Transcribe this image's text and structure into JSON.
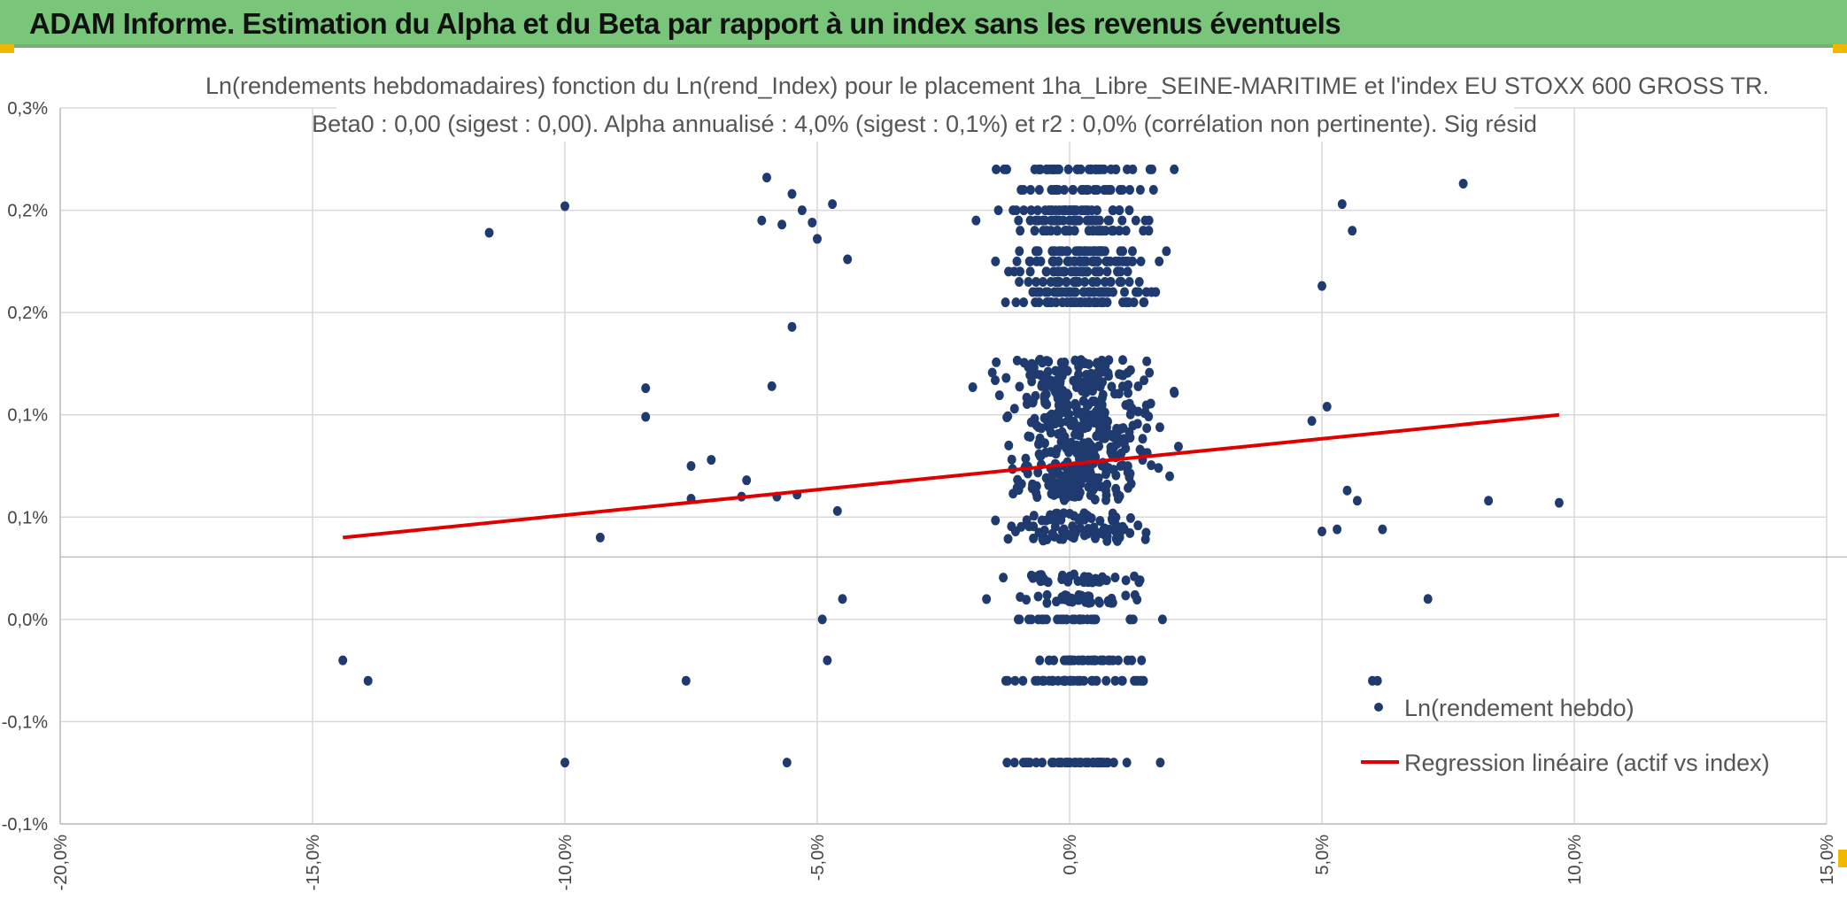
{
  "header": {
    "title": "ADAM Informe. Estimation du Alpha et du Beta par rapport à un index sans les revenus éventuels"
  },
  "colors": {
    "header_bg": "#79c67a",
    "point": "#1f3a6e",
    "regression": "#e00000",
    "grid": "#d9d9d9",
    "accent": "#f2b800"
  },
  "chart_data": {
    "type": "scatter",
    "title": "Ln(rendements hebdomadaires) fonction du Ln(rend_Index) pour le placement 1ha_Libre_SEINE-MARITIME et l'index EU STOXX 600 GROSS TR.",
    "subtitle": "Beta0 : 0,00 (sigest : 0,00). Alpha annualisé : 4,0% (sigest : 0,1%) et r2 : 0,0% (corrélation non pertinente). Sig résid",
    "xlabel": "",
    "ylabel": "",
    "xlim": [
      -0.2,
      0.15
    ],
    "ylim": [
      -0.001,
      0.0025
    ],
    "grid": true,
    "x_ticks": [
      -0.2,
      -0.15,
      -0.1,
      -0.05,
      0.0,
      0.05,
      0.1,
      0.15
    ],
    "x_tick_labels": [
      "-20,0%",
      "-15,0%",
      "-10,0%",
      "-5,0%",
      "0,0%",
      "5,0%",
      "10,0%",
      "15,0%"
    ],
    "y_ticks": [
      -0.001,
      -0.0005,
      0.0,
      0.0005,
      0.001,
      0.0015,
      0.002,
      0.0025
    ],
    "y_tick_labels": [
      "-0,1%",
      "-0,1%",
      "0,0%",
      "0,1%",
      "0,1%",
      "0,2%",
      "0,2%",
      "0,3%"
    ],
    "legend": {
      "position": "bottom-right",
      "points_label": "Ln(rendement hebdo)",
      "line_label": "Regression linéaire (actif vs index)"
    },
    "regression": {
      "x": [
        -0.144,
        0.097
      ],
      "y": [
        0.0004,
        0.001
      ]
    },
    "outliers": {
      "x": [
        -0.144,
        -0.139,
        -0.115,
        -0.1,
        -0.1,
        -0.093,
        -0.084,
        -0.084,
        -0.076,
        -0.075,
        -0.075,
        -0.071,
        -0.065,
        -0.064,
        -0.061,
        -0.06,
        -0.059,
        -0.058,
        -0.057,
        -0.056,
        -0.055,
        -0.055,
        -0.054,
        -0.053,
        -0.051,
        -0.05,
        -0.049,
        -0.048,
        -0.047,
        -0.046,
        -0.044,
        0.05,
        0.05,
        0.051,
        0.053,
        0.054,
        0.055,
        0.056,
        0.057,
        0.06,
        0.061,
        0.062,
        0.071,
        0.078,
        0.083,
        0.097,
        -0.045,
        0.048
      ],
      "y": [
        -0.0002,
        -0.0003,
        0.00189,
        -0.0007,
        0.00202,
        0.0004,
        0.00113,
        0.00099,
        -0.0003,
        0.00075,
        0.00059,
        0.00078,
        0.0006,
        0.00068,
        0.00195,
        0.00216,
        0.00114,
        0.0006,
        0.00193,
        -0.0007,
        0.00208,
        0.00143,
        0.00061,
        0.002,
        0.00194,
        0.00186,
        0.0,
        -0.0002,
        0.00203,
        0.00053,
        0.00176,
        0.00043,
        0.00163,
        0.00104,
        0.00044,
        0.00203,
        0.00063,
        0.0019,
        0.00058,
        -0.0003,
        -0.0003,
        0.00044,
        0.0001,
        0.00213,
        0.00058,
        0.00057,
        0.0001,
        0.00097
      ]
    },
    "cluster": {
      "description": "dense central cloud of weekly returns concentrated between -5% and +5% on x",
      "x_center": 0.0,
      "x_spread": 0.018,
      "y_bands": [
        -0.0007,
        -0.0002,
        -0.0003,
        0.0,
        0.0001,
        0.0002,
        0.0004,
        0.00044,
        0.0005,
        0.0006,
        0.00065,
        0.0007,
        0.00075,
        0.0008,
        0.00085,
        0.0009,
        0.00095,
        0.001,
        0.00105,
        0.0011,
        0.00115,
        0.0012,
        0.00125,
        0.00155,
        0.0016,
        0.00165,
        0.0017,
        0.00175,
        0.0018,
        0.0019,
        0.00195,
        0.002,
        0.0021,
        0.0022
      ],
      "count": 1150
    }
  }
}
